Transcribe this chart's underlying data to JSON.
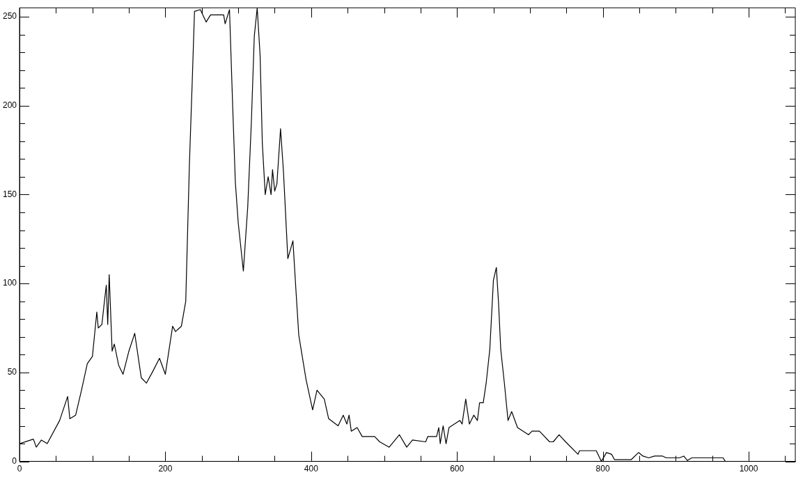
{
  "chart_data": {
    "type": "line",
    "color": "#000000",
    "marker": "none",
    "grid": false,
    "legend": false,
    "x": [
      0,
      19,
      23,
      30,
      38,
      55,
      66,
      69,
      77,
      85,
      93,
      100,
      106,
      108,
      113,
      117,
      119,
      121,
      123,
      127,
      130,
      136,
      142,
      150,
      158,
      167,
      174,
      182,
      192,
      200,
      210,
      214,
      222,
      228,
      233,
      237,
      240,
      248,
      256,
      262,
      280,
      282,
      288,
      292,
      296,
      300,
      307,
      313,
      318,
      322,
      326,
      330,
      333,
      337,
      341,
      345,
      347,
      350,
      353,
      358,
      362,
      368,
      375,
      379,
      383,
      393,
      402,
      408,
      418,
      424,
      437,
      444,
      449,
      452,
      455,
      463,
      470,
      487,
      494,
      507,
      521,
      531,
      539,
      557,
      560,
      572,
      575,
      577,
      581,
      585,
      589,
      604,
      607,
      612,
      617,
      623,
      628,
      631,
      636,
      640,
      645,
      650,
      654,
      657,
      660,
      665,
      670,
      675,
      683,
      698,
      703,
      713,
      727,
      732,
      740,
      749,
      766,
      768,
      791,
      798,
      805,
      812,
      816,
      839,
      849,
      855,
      863,
      871,
      882,
      887,
      905,
      911,
      916,
      922,
      965,
      968,
      1000,
      1064
    ],
    "values": [
      10,
      12.5,
      8,
      12,
      10,
      23,
      36.5,
      24,
      26,
      40,
      55,
      59,
      84,
      75,
      77,
      92,
      99,
      77,
      105,
      62,
      66,
      54,
      49,
      62,
      72,
      47,
      44,
      50,
      58,
      49,
      76,
      73,
      76,
      90,
      167,
      215,
      253,
      254,
      247,
      251,
      251,
      246,
      254,
      204,
      157,
      134,
      107,
      143,
      191,
      239,
      255,
      228,
      179,
      150,
      160,
      150,
      164,
      152,
      156,
      187,
      163,
      114,
      124,
      97,
      71,
      46,
      29,
      40,
      35,
      24,
      20,
      26,
      21,
      26,
      17,
      19,
      14,
      14,
      11,
      8,
      15,
      8,
      12,
      11,
      14,
      14,
      19,
      10,
      20,
      10,
      19,
      23,
      21,
      35,
      21,
      26,
      23,
      33,
      33,
      44,
      63,
      102,
      109,
      89,
      63,
      44,
      23,
      28,
      19,
      15,
      17,
      17,
      11,
      11,
      15,
      11,
      4,
      6,
      6,
      0,
      5,
      4,
      1,
      1,
      5,
      3,
      2,
      3,
      3,
      2,
      2,
      3,
      0.5,
      2,
      2,
      0,
      0,
      0
    ],
    "xlim": [
      0,
      1064
    ],
    "xticks": [
      0,
      {
        "value": 50,
        "label": null
      },
      {
        "value": 100,
        "label": null
      },
      {
        "value": 150,
        "label": null
      },
      200,
      {
        "value": 250,
        "label": null
      },
      {
        "value": 300,
        "label": null
      },
      {
        "value": 350,
        "label": null
      },
      400,
      {
        "value": 450,
        "label": null
      },
      {
        "value": 500,
        "label": null
      },
      {
        "value": 550,
        "label": null
      },
      600,
      {
        "value": 650,
        "label": null
      },
      {
        "value": 700,
        "label": null
      },
      {
        "value": 750,
        "label": null
      },
      800,
      {
        "value": 850,
        "label": null
      },
      {
        "value": 900,
        "label": null
      },
      {
        "value": 950,
        "label": null
      },
      1000,
      {
        "value": 1050,
        "label": null
      }
    ],
    "ylim": [
      0,
      255
    ],
    "yticks": [
      0,
      {
        "value": 10,
        "label": null
      },
      {
        "value": 20,
        "label": null
      },
      {
        "value": 30,
        "label": null
      },
      {
        "value": 40,
        "label": null
      },
      50,
      {
        "value": 60,
        "label": null
      },
      {
        "value": 70,
        "label": null
      },
      {
        "value": 80,
        "label": null
      },
      {
        "value": 90,
        "label": null
      },
      100,
      {
        "value": 110,
        "label": null
      },
      {
        "value": 120,
        "label": null
      },
      {
        "value": 130,
        "label": null
      },
      {
        "value": 140,
        "label": null
      },
      150,
      {
        "value": 160,
        "label": null
      },
      {
        "value": 170,
        "label": null
      },
      {
        "value": 180,
        "label": null
      },
      {
        "value": 190,
        "label": null
      },
      200,
      {
        "value": 210,
        "label": null
      },
      {
        "value": 220,
        "label": null
      },
      {
        "value": 230,
        "label": null
      },
      {
        "value": 240,
        "label": null
      },
      250
    ]
  }
}
